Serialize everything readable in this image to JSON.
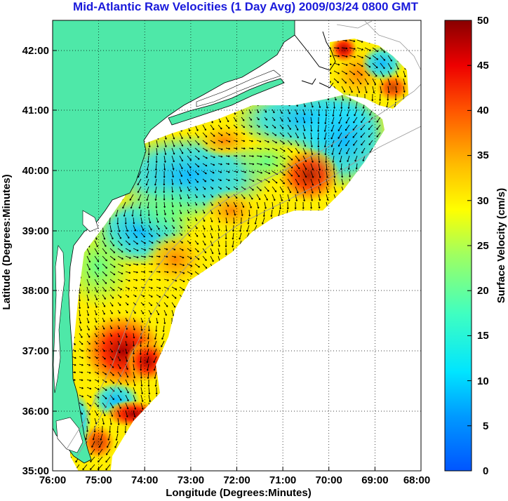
{
  "title": "Mid-Atlantic Raw Velocities (1 Day Avg) 2009/03/24 0800 GMT",
  "map": {
    "x_label": "Longitude (Degrees:Minutes)",
    "y_label": "Latitude (Degrees:Minutes)",
    "x_ticks": [
      "76:00",
      "75:00",
      "74:00",
      "73:00",
      "72:00",
      "71:00",
      "70:00",
      "69:00",
      "68:00"
    ],
    "y_ticks": [
      "42:00",
      "41:00",
      "40:00",
      "39:00",
      "38:00",
      "37:00",
      "36:00",
      "35:00"
    ],
    "land_color": "#4ee8a8",
    "grid": "dotted"
  },
  "colorbar": {
    "label": "Surface Velocity (cm/s)",
    "ticks": [
      "50",
      "45",
      "40",
      "35",
      "30",
      "25",
      "20",
      "15",
      "10",
      "5",
      "0"
    ],
    "min": 0,
    "max": 50,
    "colormap": "jet"
  }
}
